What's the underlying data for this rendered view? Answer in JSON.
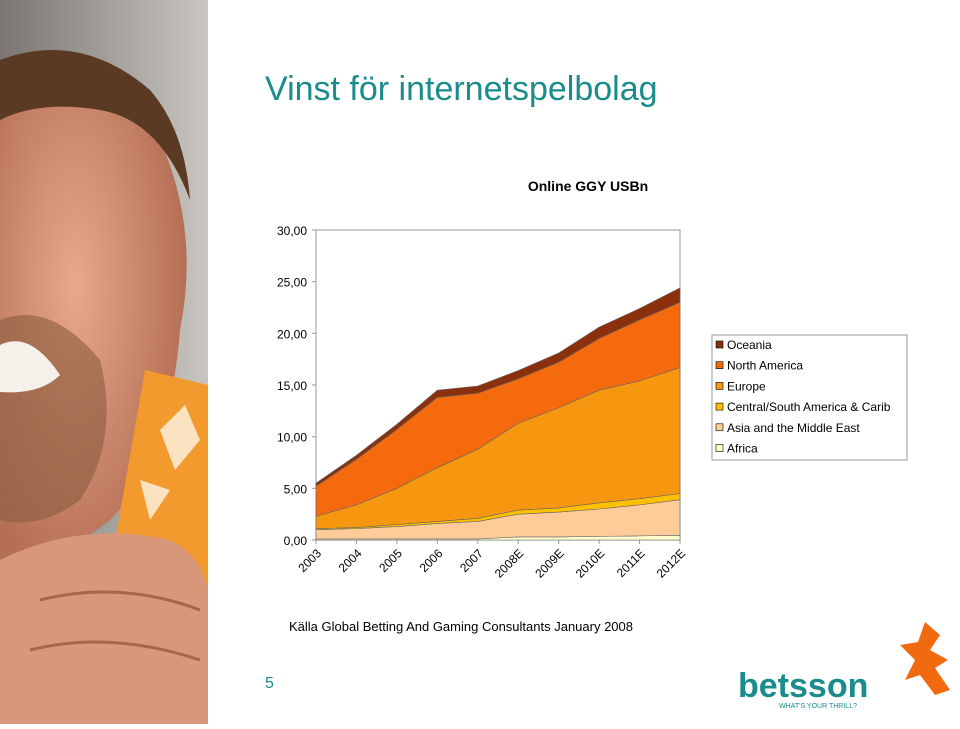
{
  "slide": {
    "title": "Vinst för internetspelbolag",
    "source": "Källa Global Betting And Gaming Consultants January 2008",
    "page_number": "5",
    "logo": "betsson",
    "tagline": "WHAT'S YOUR THRILL?"
  },
  "chart_data": {
    "type": "stacked_area",
    "title": "Online GGY USBn",
    "categories": [
      "2003",
      "2004",
      "2005",
      "2006",
      "2007",
      "2008E",
      "2009E",
      "2010E",
      "2011E",
      "2012E"
    ],
    "series": [
      {
        "name": "Africa",
        "color": "#ffffcc",
        "values": [
          0.1,
          0.1,
          0.1,
          0.1,
          0.1,
          0.3,
          0.3,
          0.35,
          0.4,
          0.45
        ]
      },
      {
        "name": "Asia and the Middle East",
        "color": "#ffcc99",
        "values": [
          0.9,
          1.0,
          1.2,
          1.5,
          1.7,
          2.2,
          2.4,
          2.65,
          3.0,
          3.45
        ]
      },
      {
        "name": "Central/South America & Carib",
        "color": "#ffc000",
        "values": [
          0.1,
          0.1,
          0.2,
          0.2,
          0.3,
          0.4,
          0.4,
          0.6,
          0.6,
          0.6
        ]
      },
      {
        "name": "Europe",
        "color": "#f7960f",
        "values": [
          1.2,
          2.2,
          3.5,
          5.2,
          6.7,
          8.4,
          9.7,
          10.9,
          11.4,
          12.2
        ]
      },
      {
        "name": "North America",
        "color": "#f56a0c",
        "values": [
          2.9,
          4.4,
          5.7,
          6.8,
          5.4,
          4.3,
          4.4,
          5.0,
          5.9,
          6.3
        ]
      },
      {
        "name": "Oceania",
        "color": "#8b300d",
        "values": [
          0.3,
          0.4,
          0.5,
          0.7,
          0.7,
          0.8,
          0.9,
          1.1,
          1.1,
          1.4
        ]
      }
    ],
    "ylim": [
      0,
      30
    ],
    "yticks": [
      {
        "value": 0,
        "label": "0,00"
      },
      {
        "value": 5,
        "label": "5,00"
      },
      {
        "value": 10,
        "label": "10,00"
      },
      {
        "value": 15,
        "label": "15,00"
      },
      {
        "value": 20,
        "label": "20,00"
      },
      {
        "value": 25,
        "label": "25,00"
      },
      {
        "value": 30,
        "label": "30,00"
      }
    ],
    "grid": false,
    "legend": "right"
  }
}
